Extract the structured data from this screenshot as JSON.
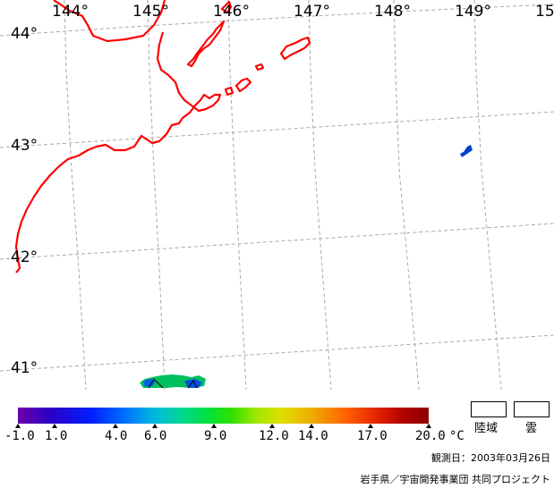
{
  "map": {
    "lon_labels": [
      "144°",
      "145°",
      "146°",
      "147°",
      "148°",
      "149°",
      "15"
    ],
    "lat_labels": [
      "44°",
      "43°",
      "42°",
      "41°"
    ]
  },
  "colorbar": {
    "ticks": [
      "-1.0",
      "1.0",
      "4.0",
      "6.0",
      "9.0",
      "12.0",
      "14.0",
      "17.0",
      "20.0"
    ],
    "unit": "°C",
    "colors": [
      "#6c00a8",
      "#0020ff",
      "#00b8e0",
      "#00e040",
      "#e0e000",
      "#ff6000",
      "#900000"
    ]
  },
  "legend": {
    "land_label": "陸域",
    "cloud_label": "雲"
  },
  "footer": {
    "observation_date": "観測日：2003年03月26日",
    "credit": "岩手県／宇宙開発事業団  共同プロジェクト"
  },
  "colors": {
    "coastline": "#ff0000",
    "graticule": "#a0a0a0",
    "data_blue": "#0040d0",
    "data_green": "#00c060"
  }
}
